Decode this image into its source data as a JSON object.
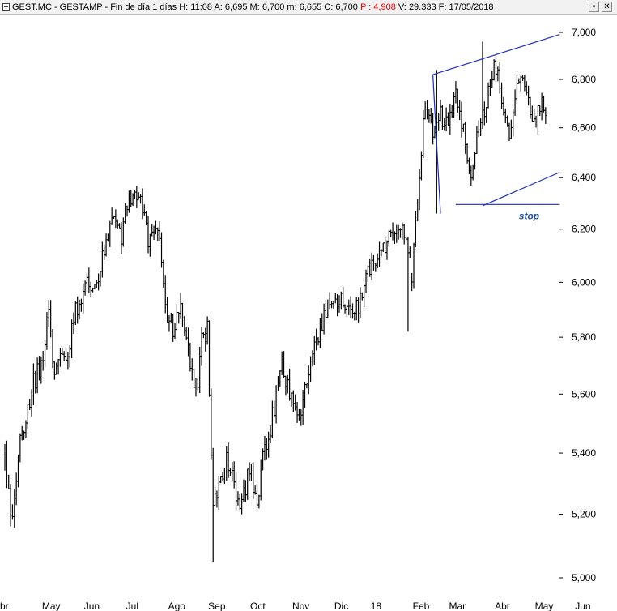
{
  "header": {
    "symbol": "GEST.MC - GESTAMP - Fin de día 1 días",
    "h_label": "H:",
    "h_value": "11:08",
    "a_label": "A:",
    "a_value": "6,695",
    "m_label": "M:",
    "m_value": "6,700",
    "mm_label": "m:",
    "mm_value": "6,655",
    "c_label": "C:",
    "c_value": "6,700",
    "p_label": "P :",
    "p_value": "4,908",
    "v_label": "V:",
    "v_value": "29.333",
    "f_label": "F:",
    "f_value": "17/05/2018",
    "restore_glyph": "▫",
    "close_glyph": "✕"
  },
  "colors": {
    "candles": "#000000",
    "trendlines": "#1f2fbf",
    "annotation": "#1f4e9a",
    "highlight": "#e00000"
  },
  "chart_data": {
    "type": "ohlc",
    "title": "GEST.MC - GESTAMP",
    "ylim": [
      5.0,
      7.0
    ],
    "y_ticks": [
      5.0,
      5.2,
      5.4,
      5.6,
      5.8,
      6.0,
      6.2,
      6.4,
      6.6,
      6.8,
      7.0
    ],
    "y_tick_labels": [
      "5,000",
      "5,200",
      "5,400",
      "5,600",
      "5,800",
      "6,000",
      "6,200",
      "6,400",
      "6,600",
      "6,800",
      "7,000"
    ],
    "x_labels": [
      "Abr",
      "May",
      "Jun",
      "Jul",
      "Ago",
      "Sep",
      "Oct",
      "Nov",
      "Dic",
      "18",
      "Feb",
      "Mar",
      "Abr",
      "May",
      "Jun"
    ],
    "x_label_display": [
      "br",
      "May",
      "Jun",
      "Jul",
      "Ago",
      "Sep",
      "Oct",
      "Nov",
      "Dic",
      "18",
      "Feb",
      "Mar",
      "Abr",
      "May",
      "Jun"
    ],
    "x_label_index": [
      0,
      19,
      41,
      63,
      85,
      106,
      128,
      150,
      172,
      191,
      213,
      232,
      256,
      277,
      298
    ],
    "n_bars": 290,
    "anchors": [
      [
        0,
        5.38
      ],
      [
        4,
        5.16
      ],
      [
        8,
        5.42
      ],
      [
        14,
        5.62
      ],
      [
        19,
        5.7
      ],
      [
        23,
        5.9
      ],
      [
        26,
        5.66
      ],
      [
        29,
        5.78
      ],
      [
        33,
        5.74
      ],
      [
        38,
        5.92
      ],
      [
        44,
        6.0
      ],
      [
        50,
        6.05
      ],
      [
        56,
        6.22
      ],
      [
        61,
        6.16
      ],
      [
        64,
        6.3
      ],
      [
        70,
        6.32
      ],
      [
        75,
        6.16
      ],
      [
        80,
        6.2
      ],
      [
        84,
        5.9
      ],
      [
        88,
        5.84
      ],
      [
        92,
        5.9
      ],
      [
        96,
        5.74
      ],
      [
        100,
        5.6
      ],
      [
        103,
        5.78
      ],
      [
        106,
        5.82
      ],
      [
        109,
        5.22
      ],
      [
        113,
        5.34
      ],
      [
        117,
        5.38
      ],
      [
        121,
        5.28
      ],
      [
        124,
        5.24
      ],
      [
        128,
        5.36
      ],
      [
        132,
        5.26
      ],
      [
        136,
        5.4
      ],
      [
        140,
        5.52
      ],
      [
        145,
        5.72
      ],
      [
        150,
        5.58
      ],
      [
        155,
        5.52
      ],
      [
        160,
        5.74
      ],
      [
        165,
        5.82
      ],
      [
        170,
        5.92
      ],
      [
        175,
        5.94
      ],
      [
        180,
        5.88
      ],
      [
        185,
        5.9
      ],
      [
        190,
        6.02
      ],
      [
        195,
        6.08
      ],
      [
        200,
        6.16
      ],
      [
        205,
        6.22
      ],
      [
        210,
        6.18
      ],
      [
        213,
        6.02
      ],
      [
        216,
        6.34
      ],
      [
        220,
        6.7
      ],
      [
        224,
        6.58
      ],
      [
        228,
        6.66
      ],
      [
        232,
        6.6
      ],
      [
        236,
        6.76
      ],
      [
        240,
        6.58
      ],
      [
        244,
        6.4
      ],
      [
        248,
        6.62
      ],
      [
        252,
        6.7
      ],
      [
        256,
        6.88
      ],
      [
        260,
        6.74
      ],
      [
        264,
        6.58
      ],
      [
        268,
        6.76
      ],
      [
        271,
        6.84
      ],
      [
        274,
        6.7
      ],
      [
        277,
        6.62
      ],
      [
        280,
        6.7
      ],
      [
        283,
        6.66
      ]
    ],
    "gaps": [
      106,
      213
    ],
    "spikes": [
      {
        "i": 109,
        "low": 5.05
      },
      {
        "i": 211,
        "low": 5.82
      },
      {
        "i": 226,
        "high": 6.84,
        "low": 6.26
      },
      {
        "i": 250,
        "high": 6.96
      }
    ],
    "trendlines": [
      {
        "name": "channel-upper",
        "from": [
          224,
          6.82
        ],
        "to": [
          290,
          6.99
        ]
      },
      {
        "name": "channel-lower",
        "from": [
          250,
          6.29
        ],
        "to": [
          290,
          6.42
        ]
      },
      {
        "name": "channel-left",
        "from": [
          224,
          6.82
        ],
        "to": [
          228,
          6.26
        ]
      },
      {
        "name": "stop-level",
        "from": [
          236,
          6.295
        ],
        "to": [
          290,
          6.295
        ]
      }
    ],
    "annotations": [
      {
        "text": "stop",
        "x": 269,
        "y": 6.25
      }
    ]
  }
}
